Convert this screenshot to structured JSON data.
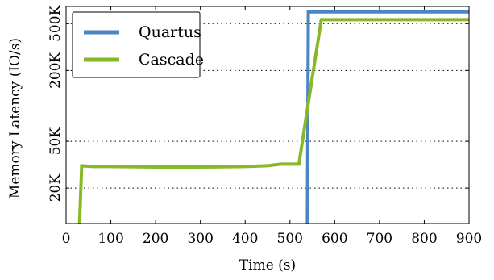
{
  "chart_data": {
    "type": "line",
    "xlabel": "Time (s)",
    "ylabel": "Memory Latency (IO/s)",
    "xlim": [
      0,
      900
    ],
    "ylim": [
      10000,
      700000
    ],
    "yscale": "log",
    "x_ticks": [
      0,
      100,
      200,
      300,
      400,
      500,
      600,
      700,
      800,
      900
    ],
    "x_tick_labels": [
      "0",
      "100",
      "200",
      "300",
      "400",
      "500",
      "600",
      "700",
      "800",
      "900"
    ],
    "y_ticks": [
      20000,
      50000,
      200000,
      500000
    ],
    "y_tick_labels": [
      "20K",
      "50K",
      "200K",
      "500K"
    ],
    "grid": "y dotted",
    "legend_position": "top-left",
    "series": [
      {
        "name": "Quartus",
        "color": "#4a86c2",
        "x": [
          539,
          539,
          541,
          900
        ],
        "y": [
          10000,
          10000,
          630000,
          630000
        ]
      },
      {
        "name": "Cascade",
        "color": "#86b827",
        "x": [
          30,
          30,
          35,
          60,
          100,
          200,
          300,
          400,
          450,
          480,
          520,
          540,
          570,
          600,
          700,
          800,
          900
        ],
        "y": [
          10000,
          10000,
          31000,
          30500,
          30500,
          30200,
          30200,
          30500,
          31000,
          32000,
          32000,
          100000,
          540000,
          540000,
          540000,
          540000,
          540000
        ]
      }
    ]
  }
}
